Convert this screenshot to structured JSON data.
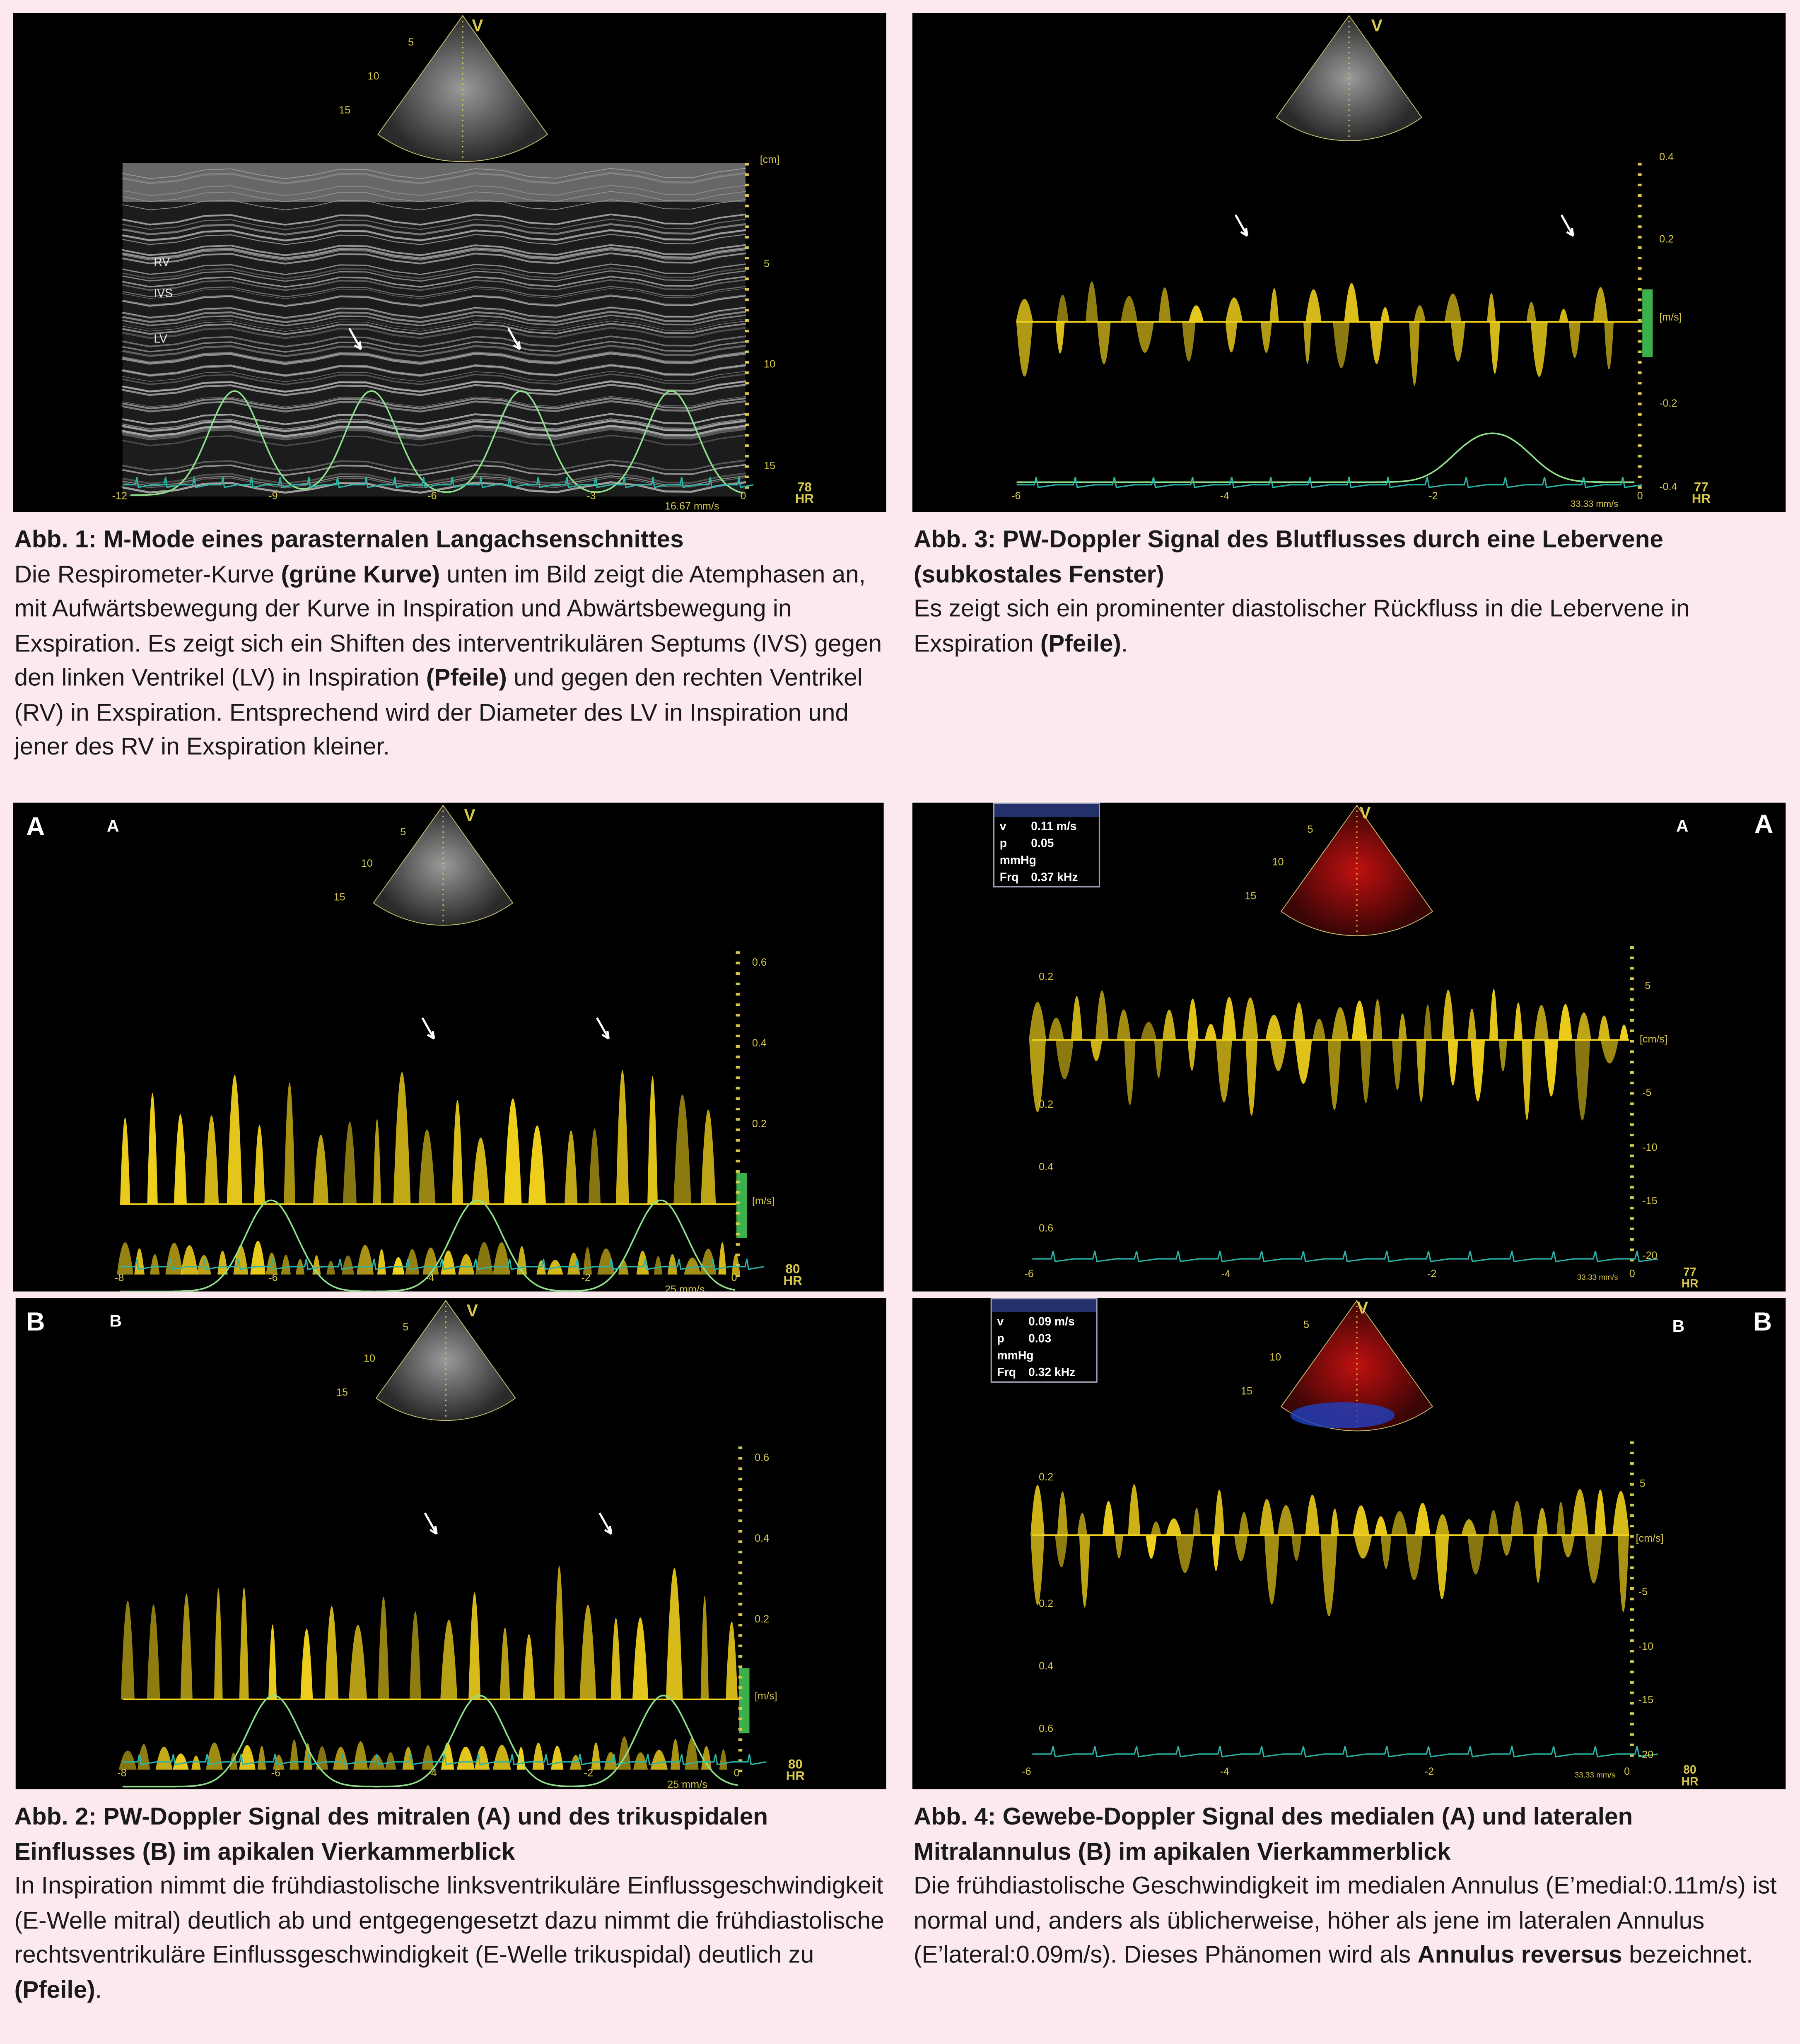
{
  "fig1": {
    "caption_title": "Abb. 1: M-Mode eines parasternalen Langachsenschnittes",
    "caption_parts": [
      "Die Respirometer-Kurve ",
      "(grüne Kurve)",
      " unten im Bild zeigt die Atemphasen an, mit Aufwärtsbewegung der Kurve in Inspiration und Abwärtsbewegung in Exspiration. Es zeigt sich ein Shiften des interventrikulären Septums (IVS) gegen den linken Ventrikel (LV) in Inspiration ",
      "(Pfeile)",
      " und gegen den rechten Ventrikel (RV) in Exspiration. Entsprechend wird der Diameter des LV in Inspiration und jener des RV in Exspiration kleiner."
    ],
    "labels": {
      "rv": "RV",
      "ivs": "IVS",
      "lv": "LV",
      "v": "V"
    },
    "sector_depth": [
      "5",
      "10",
      "15"
    ],
    "right_axis": [
      "[cm]",
      "5",
      "10",
      "15"
    ],
    "time_axis": [
      "-12",
      "-9",
      "-6",
      "-3",
      "0"
    ],
    "sweep": "16.67 mm/s",
    "hr": "78",
    "hr_label": "HR"
  },
  "fig3": {
    "caption_title": "Abb. 3: PW-Doppler Signal des Blutflusses durch eine Lebervene (subkostales Fenster)",
    "caption_parts": [
      "Es zeigt sich ein prominenter diastolischer Rückfluss in die Lebervene in Exspiration ",
      "(Pfeile)",
      "."
    ],
    "v": "V",
    "right_axis": [
      "0.4",
      "0.2",
      "[m/s]",
      "-0.2",
      "-0.4"
    ],
    "time_axis": [
      "-6",
      "-4",
      "-2",
      "0"
    ],
    "sweep": "33.33 mm/s",
    "hr": "77",
    "hr_label": "HR"
  },
  "fig2": {
    "caption_title": "Abb. 2: PW-Doppler Signal des mitralen (A) und des trikuspidalen Einflusses (B) im apikalen Vierkammerblick",
    "caption_parts": [
      "In Inspiration nimmt die frühdiastolische linksventrikuläre Einflussgeschwindigkeit (E-Welle mitral) deutlich ab und entgegengesetzt dazu nimmt die frühdiastolische rechtsventrikuläre Einflussgeschwindigkeit (E-Welle trikuspidal) deutlich zu ",
      "(Pfeile)",
      "."
    ],
    "a": {
      "label": "A",
      "v": "V",
      "depth": [
        "5",
        "10",
        "15"
      ],
      "right_axis": [
        "0.6",
        "0.4",
        "0.2",
        "[m/s]"
      ],
      "time_axis": [
        "-8",
        "-6",
        "-4",
        "-2",
        "0"
      ],
      "sweep": "25 mm/s",
      "hr": "80",
      "hr_label": "HR"
    },
    "b": {
      "label": "B",
      "v": "V",
      "depth": [
        "5",
        "10",
        "15"
      ],
      "right_axis": [
        "0.6",
        "0.4",
        "0.2",
        "[m/s]"
      ],
      "time_axis": [
        "-8",
        "-6",
        "-4",
        "-2",
        "0"
      ],
      "sweep": "25 mm/s",
      "hr": "80",
      "hr_label": "HR"
    }
  },
  "fig4": {
    "caption_title": "Abb. 4: Gewebe-Doppler Signal des medialen (A) und lateralen Mitralannulus (B) im apikalen Vierkammerblick",
    "caption_parts": [
      "Die frühdiastolische Geschwindigkeit im medialen Annulus (E’medial:0.11m/s) ist normal und, anders als üblicherweise, höher als jene im lateralen Annulus (E’lateral:0.09m/s). Dieses Phänomen wird als ",
      "Annulus reversus",
      " bezeichnet."
    ],
    "a": {
      "label": "A",
      "v": "V",
      "depth": [
        "5",
        "10",
        "15"
      ],
      "info": {
        "idx": "1",
        "v_label": "v",
        "v": "0.11 m/s",
        "p_label": "p",
        "p": "0.05 mmHg",
        "f_label": "Frq",
        "f": "0.37 kHz"
      },
      "left_axis": [
        "0.2",
        "0.2",
        "0.4",
        "0.6"
      ],
      "right_axis": [
        "5",
        "[cm/s]",
        "-5",
        "-10",
        "-15",
        "-20"
      ],
      "time_axis": [
        "-6",
        "-4",
        "-2",
        "0"
      ],
      "sweep": "33.33 mm/s",
      "hr": "77",
      "hr_label": "HR"
    },
    "b": {
      "label": "B",
      "v": "V",
      "depth": [
        "5",
        "10",
        "15"
      ],
      "info": {
        "idx": "1",
        "v_label": "v",
        "v": "0.09 m/s",
        "p_label": "p",
        "p": "0.03 mmHg",
        "f_label": "Frq",
        "f": "0.32 kHz"
      },
      "left_axis": [
        "0.2",
        "0.2",
        "0.4",
        "0.6"
      ],
      "right_axis": [
        "5",
        "[cm/s]",
        "-5",
        "-10",
        "-15",
        "-20"
      ],
      "time_axis": [
        "-6",
        "-4",
        "-2",
        "0"
      ],
      "sweep": "33.33 mm/s",
      "hr": "80",
      "hr_label": "HR"
    }
  },
  "colors": {
    "page_bg": "#fbe9ed",
    "doppler": "#f2d21c",
    "respiration": "#8fe08a",
    "ecg": "#2bb5a8",
    "axis": "#d8c84a"
  }
}
